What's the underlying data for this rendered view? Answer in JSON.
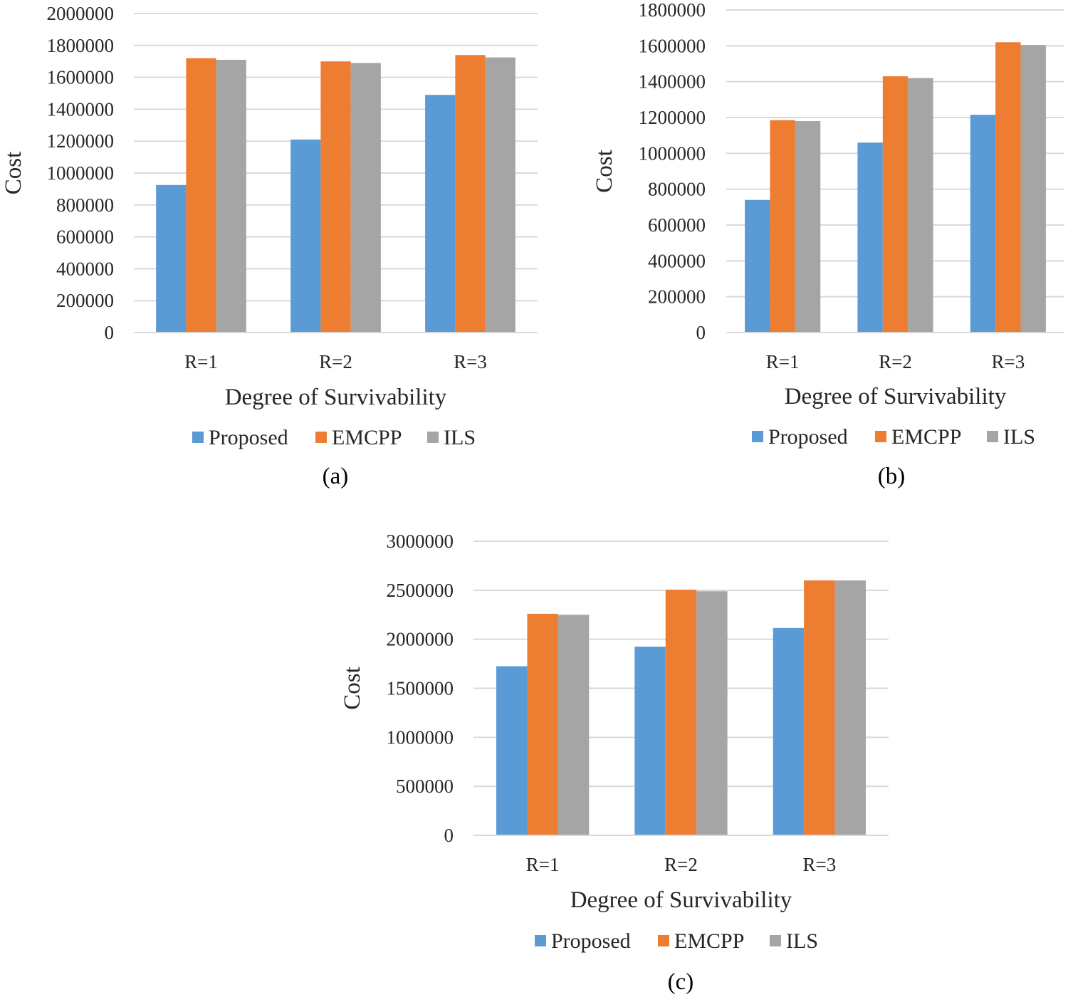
{
  "colors": {
    "Proposed": "#5b9bd5",
    "EMCPP": "#ed7d31",
    "ILS": "#a5a5a5",
    "grid": "#d9d9d9"
  },
  "chart_data": [
    {
      "type": "bar",
      "caption": "(a)",
      "categories": [
        "R=1",
        "R=2",
        "R=3"
      ],
      "series": [
        {
          "name": "Proposed",
          "values": [
            925000,
            1210000,
            1490000
          ]
        },
        {
          "name": "EMCPP",
          "values": [
            1720000,
            1700000,
            1740000
          ]
        },
        {
          "name": "ILS",
          "values": [
            1710000,
            1690000,
            1725000
          ]
        }
      ],
      "xlabel": "Degree of Survivability",
      "ylabel": "Cost",
      "ylim": [
        0,
        2000000
      ],
      "yticks": [
        "0",
        "200000",
        "400000",
        "600000",
        "800000",
        "1000000",
        "1200000",
        "1400000",
        "1600000",
        "1800000",
        "2000000"
      ],
      "grid": true,
      "legend": "bottom"
    },
    {
      "type": "bar",
      "caption": "(b)",
      "categories": [
        "R=1",
        "R=2",
        "R=3"
      ],
      "series": [
        {
          "name": "Proposed",
          "values": [
            740000,
            1060000,
            1215000
          ]
        },
        {
          "name": "EMCPP",
          "values": [
            1185000,
            1430000,
            1620000
          ]
        },
        {
          "name": "ILS",
          "values": [
            1180000,
            1420000,
            1605000
          ]
        }
      ],
      "xlabel": "Degree of Survivability",
      "ylabel": "Cost",
      "ylim": [
        0,
        1800000
      ],
      "yticks": [
        "0",
        "200000",
        "400000",
        "600000",
        "800000",
        "1000000",
        "1200000",
        "1400000",
        "1600000",
        "1800000"
      ],
      "grid": true,
      "legend": "bottom"
    },
    {
      "type": "bar",
      "caption": "(c)",
      "categories": [
        "R=1",
        "R=2",
        "R=3"
      ],
      "series": [
        {
          "name": "Proposed",
          "values": [
            1725000,
            1925000,
            2115000
          ]
        },
        {
          "name": "EMCPP",
          "values": [
            2260000,
            2505000,
            2600000
          ]
        },
        {
          "name": "ILS",
          "values": [
            2250000,
            2490000,
            2600000
          ]
        }
      ],
      "xlabel": "Degree of Survivability",
      "ylabel": "Cost",
      "ylim": [
        0,
        3000000
      ],
      "yticks": [
        "0",
        "500000",
        "1000000",
        "1500000",
        "2000000",
        "2500000",
        "3000000"
      ],
      "grid": true,
      "legend": "bottom"
    }
  ]
}
